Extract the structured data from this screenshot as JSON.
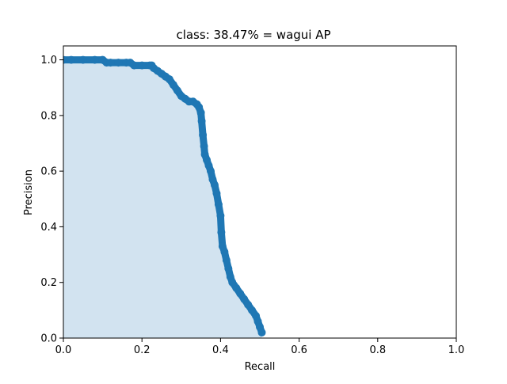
{
  "chart_data": {
    "type": "area",
    "title": "class: 38.47% = wagui AP",
    "xlabel": "Recall",
    "ylabel": "Precision",
    "xlim": [
      0,
      1
    ],
    "ylim": [
      0,
      1.05
    ],
    "xticks": [
      "0.0",
      "0.2",
      "0.4",
      "0.6",
      "0.8",
      "1.0"
    ],
    "yticks": [
      "0.0",
      "0.2",
      "0.4",
      "0.6",
      "0.8",
      "1.0"
    ],
    "grid": false,
    "legend": "none",
    "series": [
      {
        "color": "#1f77b4",
        "fill_color": "#d2e3f0",
        "x": [
          0.0,
          0.02,
          0.05,
          0.08,
          0.1,
          0.11,
          0.12,
          0.14,
          0.16,
          0.17,
          0.18,
          0.2,
          0.22,
          0.225,
          0.23,
          0.24,
          0.25,
          0.26,
          0.27,
          0.28,
          0.29,
          0.3,
          0.31,
          0.32,
          0.33,
          0.34,
          0.345,
          0.35,
          0.352,
          0.355,
          0.358,
          0.36,
          0.365,
          0.37,
          0.375,
          0.38,
          0.385,
          0.39,
          0.395,
          0.4,
          0.402,
          0.405,
          0.41,
          0.415,
          0.42,
          0.425,
          0.43,
          0.44,
          0.45,
          0.46,
          0.47,
          0.48,
          0.49,
          0.495,
          0.5,
          0.505
        ],
        "y": [
          1.0,
          1.0,
          1.0,
          1.0,
          1.0,
          0.99,
          0.99,
          0.99,
          0.99,
          0.99,
          0.98,
          0.98,
          0.98,
          0.98,
          0.97,
          0.96,
          0.95,
          0.94,
          0.93,
          0.91,
          0.89,
          0.87,
          0.86,
          0.85,
          0.85,
          0.84,
          0.83,
          0.81,
          0.78,
          0.73,
          0.69,
          0.66,
          0.64,
          0.62,
          0.6,
          0.57,
          0.55,
          0.52,
          0.48,
          0.44,
          0.38,
          0.33,
          0.31,
          0.28,
          0.25,
          0.22,
          0.2,
          0.18,
          0.16,
          0.14,
          0.12,
          0.1,
          0.08,
          0.06,
          0.04,
          0.02
        ]
      }
    ]
  }
}
